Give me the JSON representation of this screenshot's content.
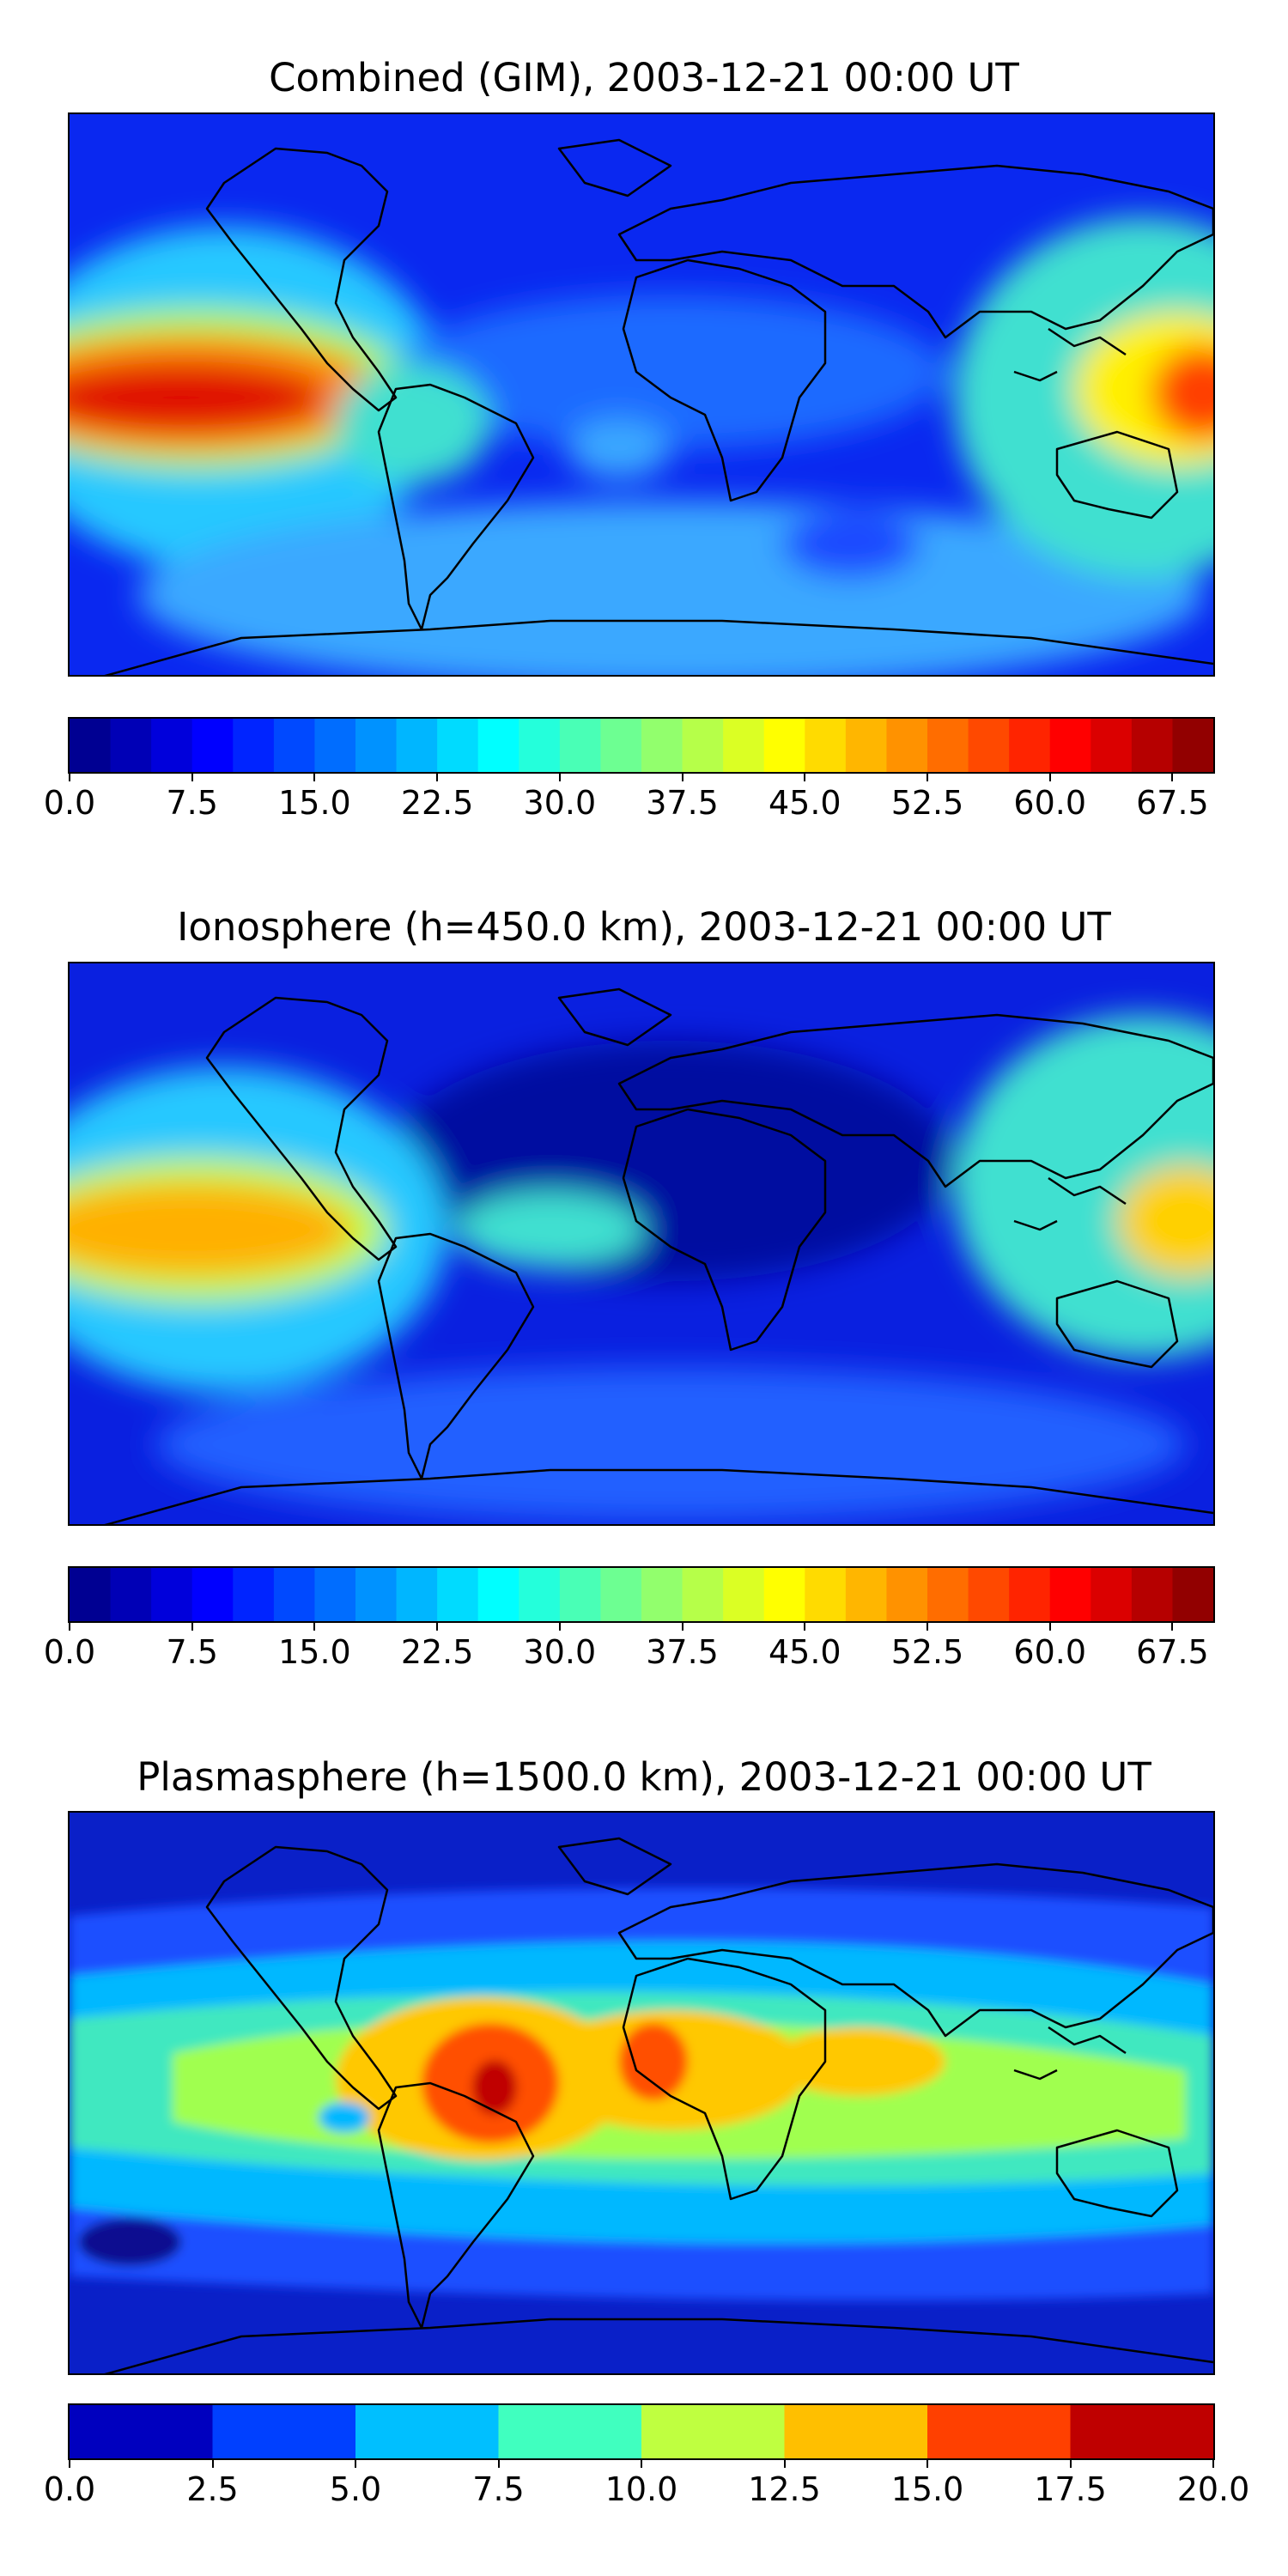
{
  "panels": [
    {
      "id": "combined",
      "title": "Combined (GIM), 2003-12-21 00:00 UT",
      "colorbar": {
        "min": 0,
        "max": 70,
        "levels": 28,
        "ticks": [
          "0.0",
          "7.5",
          "15.0",
          "22.5",
          "30.0",
          "37.5",
          "45.0",
          "52.5",
          "60.0",
          "67.5"
        ],
        "tick_values": [
          0,
          7.5,
          15,
          22.5,
          30,
          37.5,
          45,
          52.5,
          60,
          67.5
        ]
      }
    },
    {
      "id": "ionosphere",
      "title": "Ionosphere  (h=450.0 km), 2003-12-21 00:00 UT",
      "colorbar": {
        "min": 0,
        "max": 70,
        "levels": 28,
        "ticks": [
          "0.0",
          "7.5",
          "15.0",
          "22.5",
          "30.0",
          "37.5",
          "45.0",
          "52.5",
          "60.0",
          "67.5"
        ],
        "tick_values": [
          0,
          7.5,
          15,
          22.5,
          30,
          37.5,
          45,
          52.5,
          60,
          67.5
        ]
      }
    },
    {
      "id": "plasmasphere",
      "title": "Plasmasphere (h=1500.0 km), 2003-12-21 00:00 UT",
      "colorbar": {
        "min": 0,
        "max": 20,
        "levels": 8,
        "ticks": [
          "0.0",
          "2.5",
          "5.0",
          "7.5",
          "10.0",
          "12.5",
          "15.0",
          "17.5",
          "20.0"
        ],
        "tick_values": [
          0,
          2.5,
          5,
          7.5,
          10,
          12.5,
          15,
          17.5,
          20
        ]
      }
    }
  ],
  "colormap": "jet",
  "coastline_color": "#000000"
}
